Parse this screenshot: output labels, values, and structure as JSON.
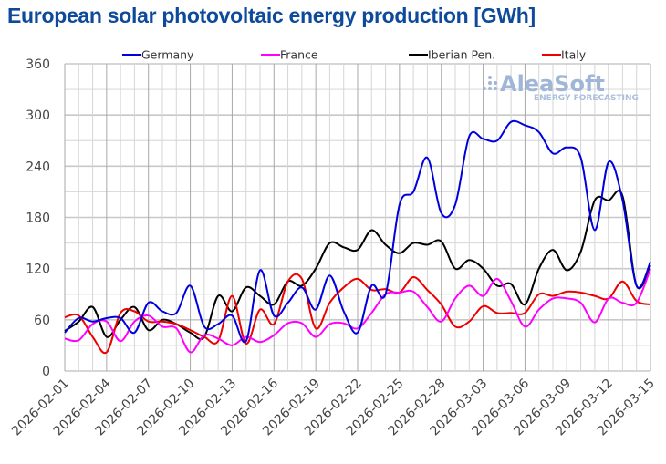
{
  "chart_data": {
    "type": "line",
    "title": "European solar photovoltaic energy production [GWh]",
    "xlabel": "",
    "ylabel": "",
    "ylim": [
      0,
      360
    ],
    "yticks": [
      0,
      60,
      120,
      180,
      240,
      300,
      360
    ],
    "grid": true,
    "legend_position": "top",
    "x": [
      "2026-02-01",
      "2026-02-02",
      "2026-02-03",
      "2026-02-04",
      "2026-02-05",
      "2026-02-06",
      "2026-02-07",
      "2026-02-08",
      "2026-02-09",
      "2026-02-10",
      "2026-02-11",
      "2026-02-12",
      "2026-02-13",
      "2026-02-14",
      "2026-02-15",
      "2026-02-16",
      "2026-02-17",
      "2026-02-18",
      "2026-02-19",
      "2026-02-20",
      "2026-02-21",
      "2026-02-22",
      "2026-02-23",
      "2026-02-24",
      "2026-02-25",
      "2026-02-26",
      "2026-02-27",
      "2026-02-28",
      "2026-03-01",
      "2026-03-02",
      "2026-03-03",
      "2026-03-04",
      "2026-03-05",
      "2026-03-06",
      "2026-03-07",
      "2026-03-08",
      "2026-03-09",
      "2026-03-10",
      "2026-03-11",
      "2026-03-12",
      "2026-03-13",
      "2026-03-14",
      "2026-03-15"
    ],
    "xtick_labels": [
      "2026-02-01",
      "2026-02-04",
      "2026-02-07",
      "2026-02-10",
      "2026-02-13",
      "2026-02-16",
      "2026-02-19",
      "2026-02-22",
      "2026-02-25",
      "2026-02-28",
      "2026-03-03",
      "2026-03-06",
      "2026-03-09",
      "2026-03-12",
      "2026-03-15"
    ],
    "series": [
      {
        "name": "Germany",
        "color": "#0000dd",
        "values": [
          45,
          62,
          58,
          62,
          62,
          45,
          80,
          70,
          68,
          100,
          52,
          55,
          65,
          35,
          118,
          65,
          80,
          98,
          72,
          112,
          70,
          45,
          100,
          90,
          195,
          210,
          250,
          185,
          195,
          275,
          272,
          270,
          292,
          288,
          280,
          255,
          262,
          250,
          165,
          245,
          200,
          100,
          128
        ]
      },
      {
        "name": "France",
        "color": "#ff00ff",
        "values": [
          38,
          36,
          55,
          58,
          35,
          58,
          65,
          52,
          50,
          22,
          42,
          38,
          30,
          40,
          34,
          42,
          56,
          56,
          40,
          55,
          56,
          50,
          68,
          90,
          92,
          93,
          75,
          58,
          85,
          100,
          88,
          108,
          82,
          52,
          72,
          85,
          85,
          80,
          57,
          85,
          80,
          80,
          120
        ]
      },
      {
        "name": "Iberian Pen.",
        "color": "#000000",
        "values": [
          47,
          58,
          75,
          40,
          60,
          75,
          48,
          60,
          55,
          45,
          40,
          88,
          70,
          98,
          88,
          78,
          105,
          100,
          120,
          150,
          145,
          142,
          165,
          148,
          138,
          150,
          148,
          152,
          120,
          130,
          120,
          100,
          102,
          78,
          120,
          142,
          118,
          140,
          200,
          200,
          205,
          100,
          124
        ]
      },
      {
        "name": "Italy",
        "color": "#ee0000",
        "values": [
          63,
          65,
          40,
          22,
          68,
          70,
          58,
          58,
          55,
          48,
          40,
          35,
          88,
          32,
          72,
          55,
          105,
          108,
          50,
          80,
          98,
          108,
          95,
          96,
          92,
          110,
          95,
          78,
          52,
          58,
          76,
          68,
          68,
          68,
          90,
          88,
          93,
          92,
          88,
          85,
          105,
          82,
          78
        ]
      }
    ]
  },
  "watermark": {
    "brand": "AleaSoft",
    "tagline": "ENERGY FORECASTING"
  }
}
